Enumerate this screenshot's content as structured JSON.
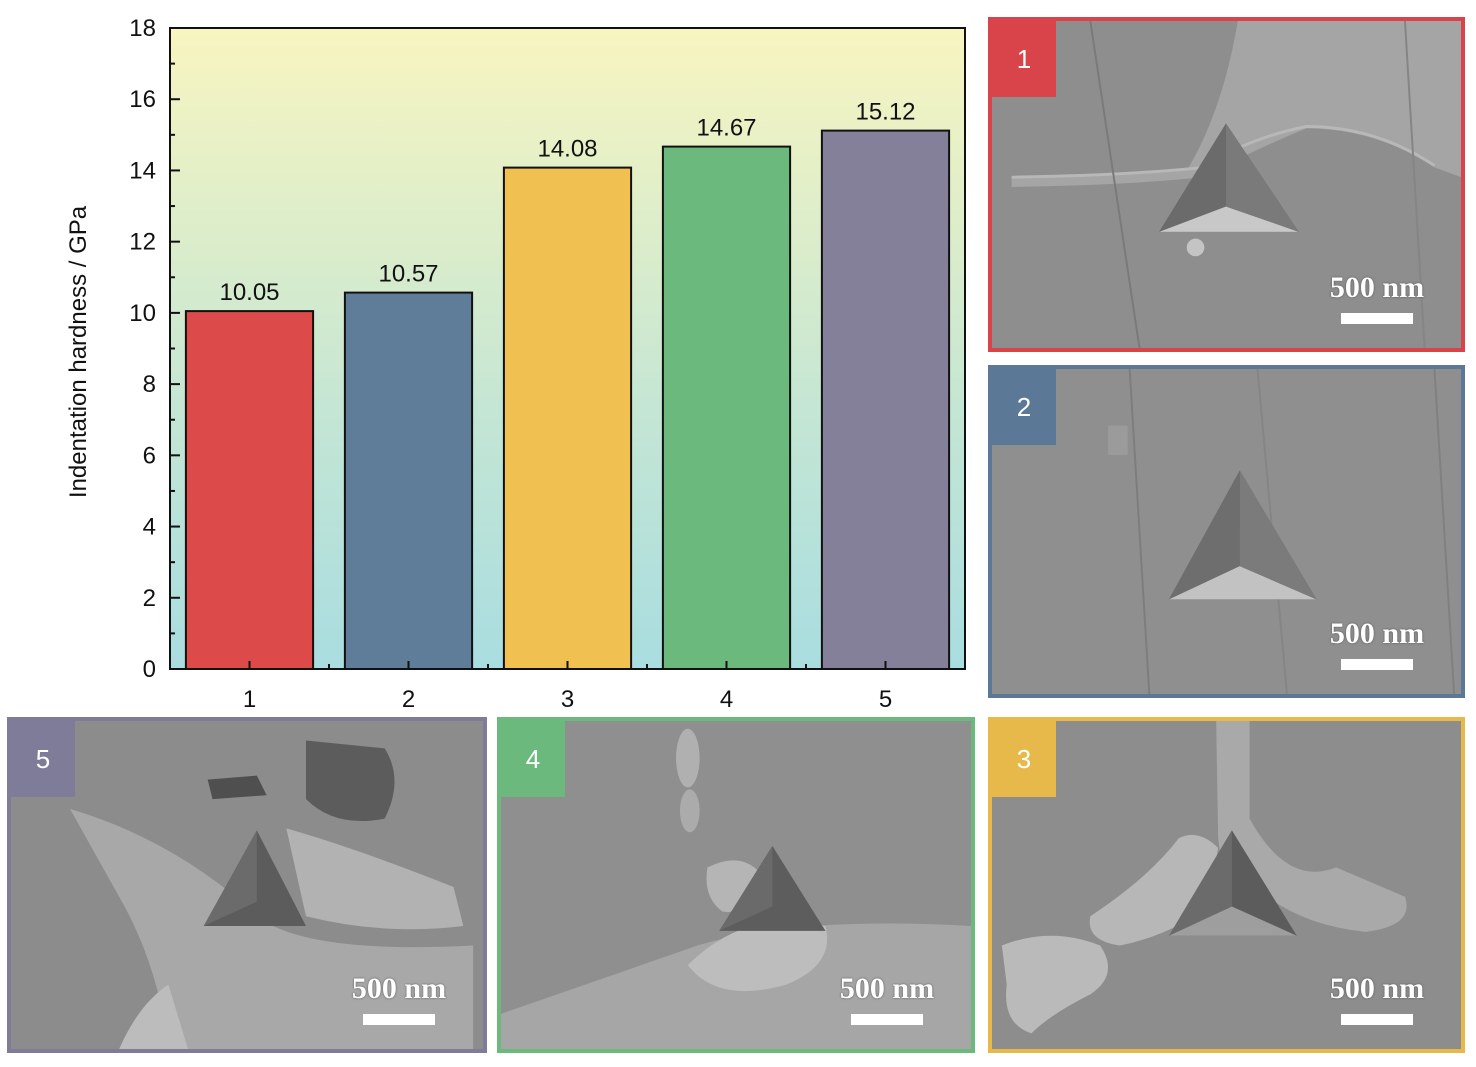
{
  "chart_data": {
    "type": "bar",
    "categories": [
      "1",
      "2",
      "3",
      "4",
      "5"
    ],
    "values": [
      10.05,
      10.57,
      14.08,
      14.67,
      15.12
    ],
    "data_labels": [
      "10.05",
      "10.57",
      "14.08",
      "14.67",
      "15.12"
    ],
    "bar_colors": [
      "#dd4a4a",
      "#5f7c98",
      "#f0c050",
      "#6cb97e",
      "#858099"
    ],
    "title": "",
    "xlabel": "",
    "ylabel": "Indentation hardness / GPa",
    "ylim": [
      0,
      18
    ],
    "yticks": [
      "0",
      "2",
      "4",
      "6",
      "8",
      "10",
      "12",
      "14",
      "16",
      "18"
    ],
    "background_gradient": [
      "#f8f5c0",
      "#c4e6d4",
      "#a9dde0"
    ],
    "grid": false,
    "legend": "none"
  },
  "panels": [
    {
      "label": "1",
      "scale": "500 nm",
      "color": "#d9434a"
    },
    {
      "label": "2",
      "scale": "500 nm",
      "color": "#5b7897"
    },
    {
      "label": "3",
      "scale": "500 nm",
      "color": "#e7b94a"
    },
    {
      "label": "4",
      "scale": "500 nm",
      "color": "#6cb97e"
    },
    {
      "label": "5",
      "scale": "500 nm",
      "color": "#7f7c9a"
    }
  ]
}
